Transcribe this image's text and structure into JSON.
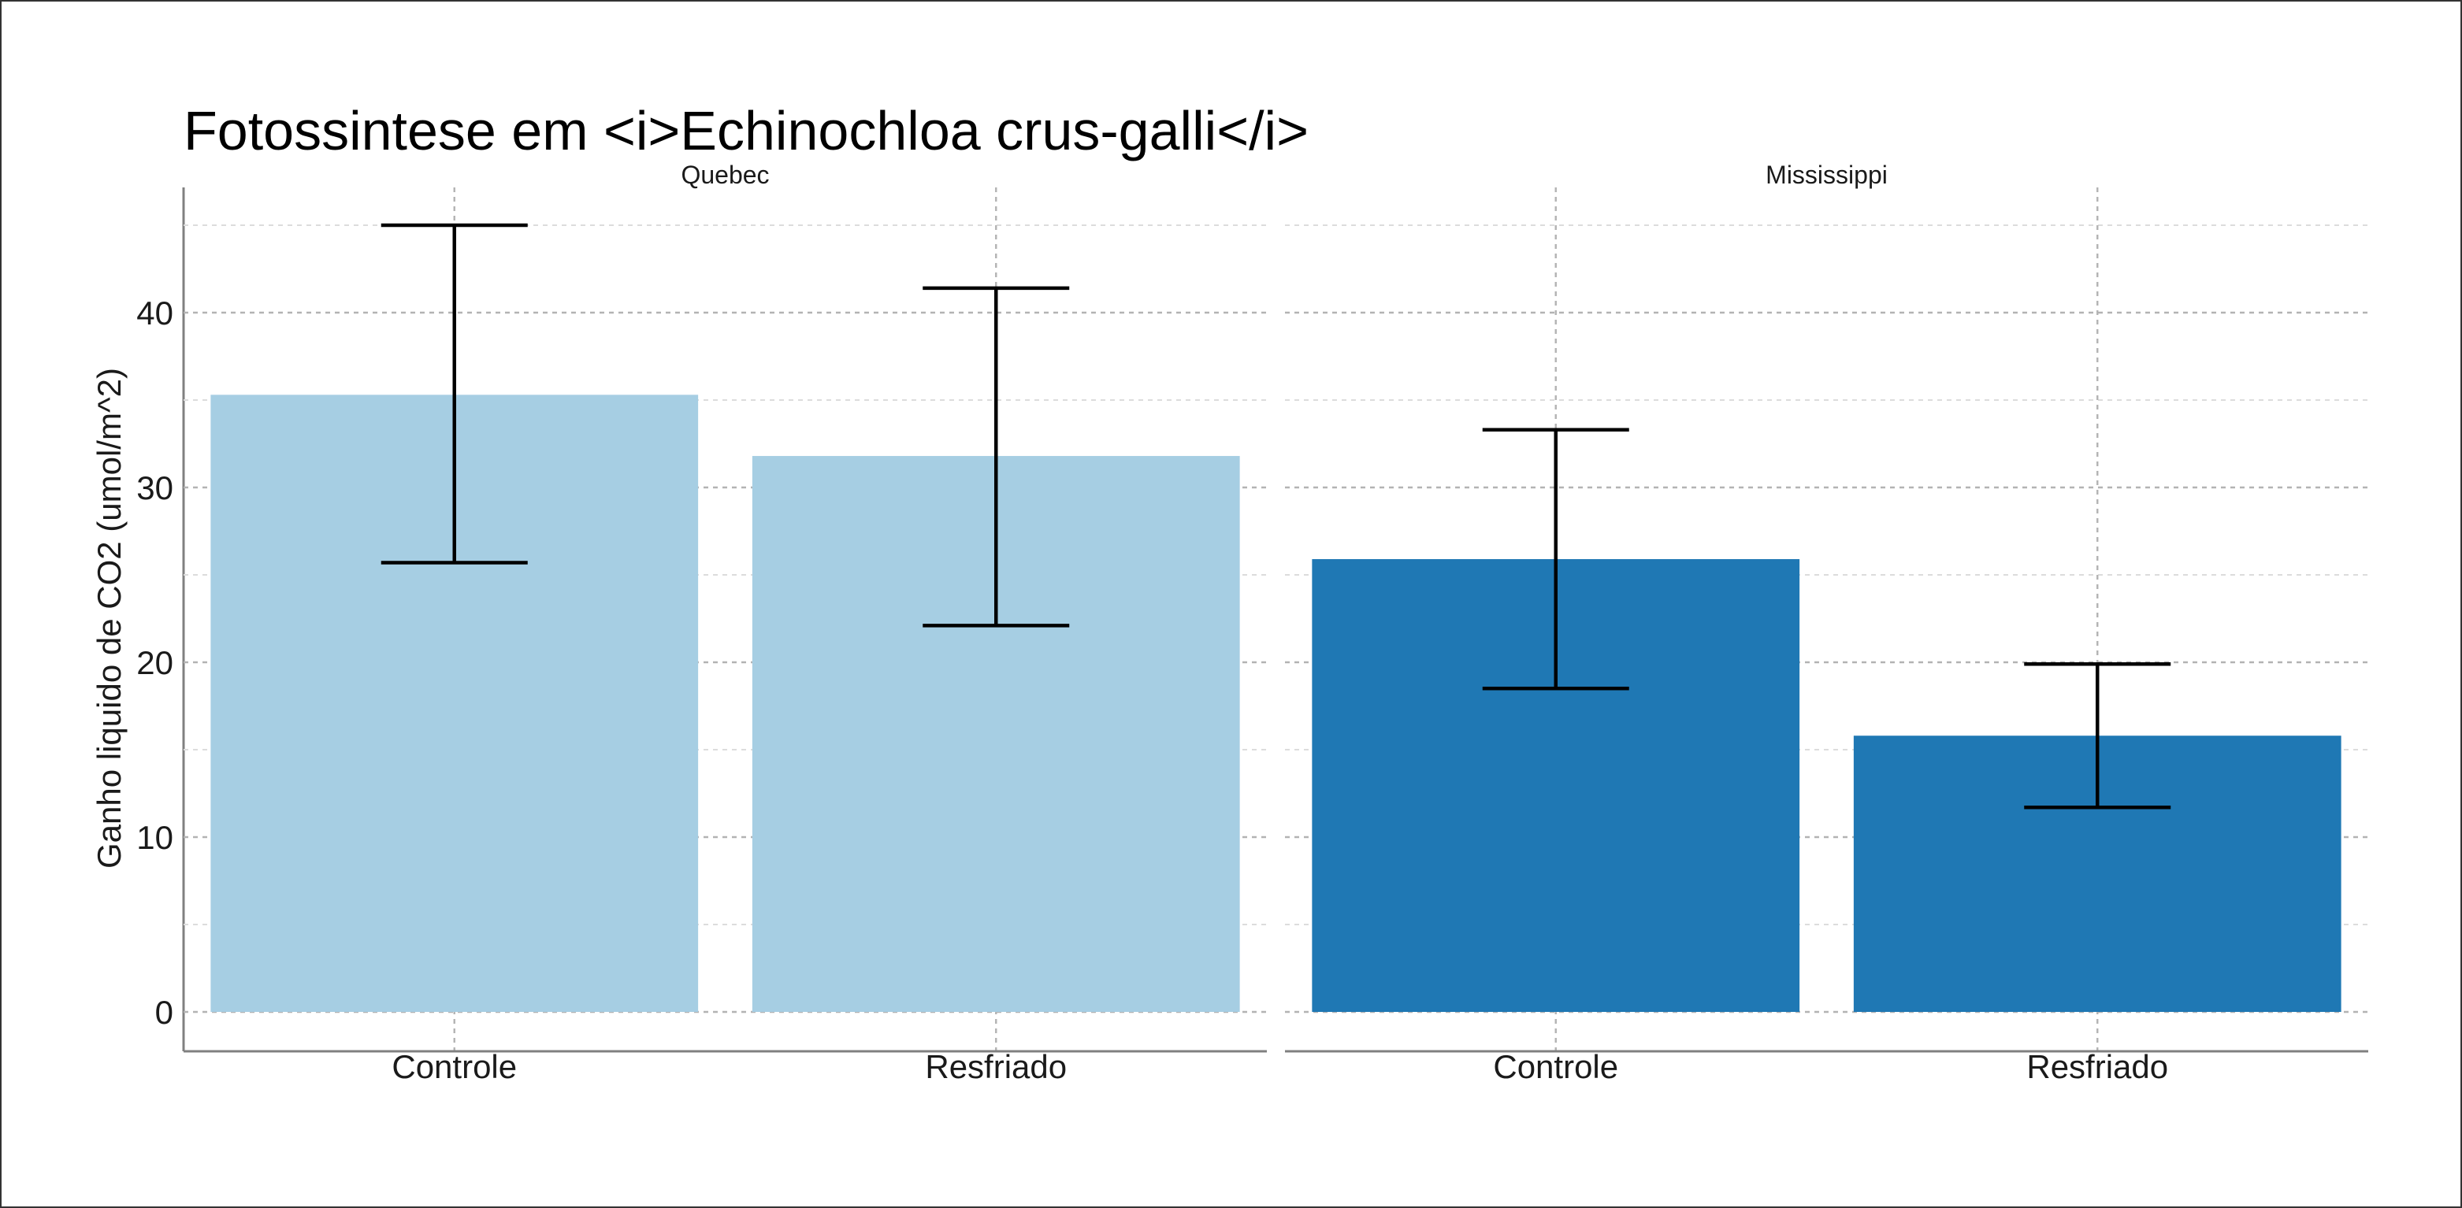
{
  "chart_data": {
    "type": "bar",
    "title": "Fotossintese em <i>Echinochloa crus-galli</i>",
    "ylabel": "Ganho liquido de CO2 (umol/m^2)",
    "xlabel": "",
    "ylim": [
      0,
      45
    ],
    "yticks": [
      0,
      10,
      20,
      30,
      40
    ],
    "grid": true,
    "legend": "none",
    "categories": [
      "Controle",
      "Resfriado"
    ],
    "panels": [
      {
        "name": "Quebec",
        "color": "#a6cee3",
        "values": [
          35.3,
          31.8
        ],
        "error_low": [
          25.7,
          22.1
        ],
        "error_high": [
          45.0,
          41.4
        ]
      },
      {
        "name": "Mississippi",
        "color": "#1f78b4",
        "values": [
          25.9,
          15.8
        ],
        "error_low": [
          18.5,
          11.7
        ],
        "error_high": [
          33.3,
          19.9
        ]
      }
    ]
  }
}
